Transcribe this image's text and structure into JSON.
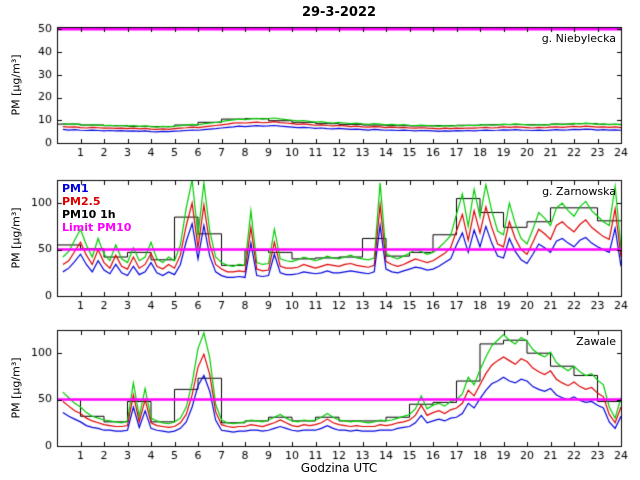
{
  "title": "29-3-2022",
  "xlabel": "Godzina UTC",
  "legend": {
    "items": [
      {
        "label": "PM1",
        "color": "#0000dd"
      },
      {
        "label": "PM2.5",
        "color": "#dd0000"
      },
      {
        "label": "PM10 1h",
        "color": "#000000"
      },
      {
        "label": "Limit PM10",
        "color": "#ff00ff"
      }
    ]
  },
  "chart_data": [
    {
      "type": "line",
      "station": "g. Niebylecka",
      "ylabel": "PM [µg/m³]",
      "xlim": [
        0,
        24
      ],
      "ylim": [
        0,
        51
      ],
      "xticks": [
        1,
        2,
        3,
        4,
        5,
        6,
        7,
        8,
        9,
        10,
        11,
        12,
        13,
        14,
        15,
        16,
        17,
        18,
        19,
        20,
        21,
        22,
        23,
        24
      ],
      "yticks": [
        0,
        10,
        20,
        30,
        40,
        50
      ],
      "x_start": 0.25,
      "x_step": 0.25,
      "series": [
        {
          "name": "PM10",
          "color": "#00cc00",
          "values": [
            8.5,
            8.2,
            8.4,
            8.0,
            7.8,
            8.1,
            7.9,
            7.6,
            7.8,
            7.5,
            7.7,
            7.4,
            7.6,
            7.3,
            7.5,
            7.2,
            7.0,
            7.3,
            7.1,
            7.4,
            7.6,
            7.9,
            8.2,
            8.0,
            8.4,
            8.7,
            9.0,
            9.4,
            9.8,
            10.2,
            10.5,
            10.3,
            10.6,
            10.8,
            10.5,
            10.7,
            11.0,
            10.6,
            10.3,
            10.0,
            9.7,
            9.9,
            9.5,
            9.2,
            9.4,
            9.0,
            8.8,
            9.1,
            8.8,
            8.5,
            8.7,
            8.4,
            8.2,
            8.5,
            8.3,
            8.0,
            8.2,
            7.9,
            8.1,
            7.8,
            7.6,
            7.9,
            7.7,
            7.5,
            7.3,
            7.6,
            7.4,
            7.7,
            7.5,
            7.8,
            7.6,
            7.9,
            8.1,
            7.8,
            8.0,
            8.3,
            8.1,
            8.4,
            8.2,
            8.0,
            7.8,
            8.1,
            7.9,
            8.2,
            8.4,
            8.1,
            8.3,
            8.6,
            8.4,
            8.7,
            8.5,
            8.2,
            8.4,
            8.1,
            8.3,
            8.0
          ]
        },
        {
          "name": "PM2.5",
          "color": "#dd0000",
          "values": [
            7.2,
            7.0,
            7.1,
            6.8,
            6.6,
            6.9,
            6.7,
            6.5,
            6.6,
            6.4,
            6.5,
            6.3,
            6.5,
            6.2,
            6.4,
            6.1,
            6.0,
            6.2,
            6.0,
            6.3,
            6.5,
            6.7,
            7.0,
            6.8,
            7.1,
            7.4,
            7.7,
            8.0,
            8.3,
            8.7,
            8.9,
            8.8,
            9.0,
            9.2,
            8.9,
            9.1,
            9.4,
            9.0,
            8.8,
            8.5,
            8.2,
            8.4,
            8.1,
            7.8,
            8.0,
            7.7,
            7.5,
            7.7,
            7.5,
            7.2,
            7.4,
            7.1,
            7.0,
            7.2,
            7.1,
            6.8,
            7.0,
            6.7,
            6.9,
            6.6,
            6.5,
            6.7,
            6.5,
            6.4,
            6.2,
            6.5,
            6.3,
            6.5,
            6.4,
            6.6,
            6.5,
            6.7,
            6.9,
            6.6,
            6.8,
            7.1,
            6.9,
            7.1,
            7.0,
            6.8,
            6.6,
            6.9,
            6.7,
            7.0,
            7.1,
            6.9,
            7.1,
            7.3,
            7.1,
            7.4,
            7.2,
            7.0,
            7.1,
            6.9,
            7.1,
            6.8
          ]
        },
        {
          "name": "PM1",
          "color": "#0000dd",
          "values": [
            6.0,
            5.7,
            5.9,
            5.6,
            5.5,
            5.7,
            5.5,
            5.3,
            5.5,
            5.3,
            5.4,
            5.2,
            5.3,
            5.1,
            5.3,
            5.0,
            4.9,
            5.1,
            5.0,
            5.2,
            5.3,
            5.5,
            5.7,
            5.6,
            5.9,
            6.1,
            6.3,
            6.6,
            6.9,
            7.1,
            7.4,
            7.2,
            7.4,
            7.6,
            7.4,
            7.5,
            7.7,
            7.4,
            7.2,
            7.0,
            6.8,
            6.9,
            6.7,
            6.4,
            6.6,
            6.3,
            6.2,
            6.4,
            6.2,
            6.0,
            6.1,
            5.9,
            5.7,
            6.0,
            5.8,
            5.6,
            5.7,
            5.5,
            5.7,
            5.5,
            5.3,
            5.5,
            5.4,
            5.3,
            5.1,
            5.3,
            5.2,
            5.4,
            5.3,
            5.5,
            5.3,
            5.5,
            5.7,
            5.5,
            5.6,
            5.8,
            5.7,
            5.9,
            5.7,
            5.6,
            5.5,
            5.7,
            5.5,
            5.7,
            5.9,
            5.7,
            5.8,
            6.0,
            5.9,
            6.1,
            6.0,
            5.7,
            5.9,
            5.7,
            5.8,
            5.6
          ]
        }
      ],
      "step_series": {
        "name": "PM10 1h",
        "color": "#000000",
        "values": [
          8.3,
          7.9,
          7.6,
          7.3,
          7.2,
          7.9,
          9.1,
          10.5,
          10.7,
          9.8,
          9.1,
          8.5,
          8.2,
          7.9,
          7.6,
          7.5,
          7.6,
          7.8,
          8.0,
          8.1,
          8.0,
          8.3,
          8.5,
          8.2
        ]
      },
      "limit": {
        "name": "Limit PM10",
        "color": "#ff00ff",
        "value": 50
      }
    },
    {
      "type": "line",
      "station": "g. Zarnowska",
      "ylabel": "PM [µg/m³]",
      "xlim": [
        0,
        24
      ],
      "ylim": [
        0,
        125
      ],
      "xticks": [
        1,
        2,
        3,
        4,
        5,
        6,
        7,
        8,
        9,
        10,
        11,
        12,
        13,
        14,
        15,
        16,
        17,
        18,
        19,
        20,
        21,
        22,
        23,
        24
      ],
      "yticks": [
        0,
        50,
        100
      ],
      "x_start": 0.25,
      "x_step": 0.25,
      "series": [
        {
          "name": "PM10",
          "color": "#00cc00",
          "values": [
            42,
            48,
            60,
            72,
            55,
            42,
            62,
            45,
            38,
            55,
            40,
            36,
            52,
            38,
            42,
            58,
            40,
            36,
            42,
            38,
            55,
            95,
            125,
            65,
            122,
            70,
            42,
            36,
            33,
            32,
            34,
            33,
            92,
            36,
            34,
            35,
            72,
            40,
            38,
            37,
            39,
            42,
            40,
            38,
            40,
            43,
            41,
            40,
            42,
            44,
            41,
            40,
            39,
            41,
            122,
            46,
            42,
            40,
            43,
            46,
            50,
            48,
            45,
            47,
            52,
            58,
            65,
            88,
            110,
            75,
            115,
            85,
            120,
            92,
            70,
            66,
            100,
            78,
            62,
            56,
            72,
            90,
            84,
            76,
            95,
            100,
            92,
            86,
            96,
            102,
            92,
            86,
            80,
            76,
            118,
            52
          ]
        },
        {
          "name": "PM2.5",
          "color": "#dd0000",
          "values": [
            34,
            38,
            48,
            58,
            44,
            34,
            50,
            36,
            30,
            44,
            32,
            29,
            42,
            30,
            34,
            46,
            32,
            29,
            34,
            30,
            44,
            76,
            100,
            52,
            98,
            56,
            34,
            29,
            26,
            26,
            27,
            26,
            74,
            29,
            27,
            28,
            58,
            32,
            30,
            30,
            31,
            34,
            32,
            30,
            32,
            34,
            33,
            32,
            34,
            35,
            33,
            32,
            31,
            33,
            98,
            37,
            34,
            32,
            34,
            37,
            40,
            38,
            36,
            38,
            42,
            46,
            52,
            70,
            88,
            60,
            92,
            68,
            96,
            74,
            56,
            53,
            80,
            62,
            50,
            45,
            58,
            72,
            67,
            61,
            76,
            80,
            74,
            69,
            77,
            82,
            74,
            69,
            64,
            61,
            94,
            42
          ]
        },
        {
          "name": "PM1",
          "color": "#0000dd",
          "values": [
            26,
            30,
            37,
            45,
            34,
            26,
            38,
            28,
            24,
            34,
            25,
            22,
            32,
            23,
            26,
            36,
            25,
            22,
            26,
            23,
            34,
            59,
            78,
            40,
            76,
            43,
            26,
            22,
            20,
            20,
            21,
            20,
            57,
            22,
            21,
            22,
            45,
            25,
            23,
            23,
            24,
            26,
            25,
            24,
            25,
            27,
            25,
            25,
            26,
            27,
            26,
            25,
            24,
            26,
            76,
            29,
            26,
            25,
            27,
            29,
            31,
            30,
            28,
            29,
            32,
            36,
            40,
            55,
            68,
            47,
            71,
            53,
            75,
            57,
            43,
            41,
            62,
            48,
            39,
            35,
            45,
            56,
            52,
            47,
            59,
            62,
            57,
            53,
            60,
            63,
            57,
            53,
            50,
            47,
            73,
            32
          ]
        }
      ],
      "step_series": {
        "name": "PM10 1h",
        "color": "#000000",
        "values": [
          55,
          51,
          42,
          47,
          39,
          85,
          67,
          33,
          49,
          47,
          40,
          41,
          42,
          62,
          43,
          47,
          66,
          105,
          90,
          74,
          80,
          95,
          95,
          81
        ]
      },
      "limit": {
        "name": "Limit PM10",
        "color": "#ff00ff",
        "value": 50
      }
    },
    {
      "type": "line",
      "station": "Zawale",
      "ylabel": "PM [µg/m³]",
      "xlim": [
        0,
        24
      ],
      "ylim": [
        0,
        125
      ],
      "xticks": [
        1,
        2,
        3,
        4,
        5,
        6,
        7,
        8,
        9,
        10,
        11,
        12,
        13,
        14,
        15,
        16,
        17,
        18,
        19,
        20,
        21,
        22,
        23,
        24
      ],
      "yticks": [
        0,
        50,
        100
      ],
      "x_start": 0.25,
      "x_step": 0.25,
      "series": [
        {
          "name": "PM10",
          "color": "#00cc00",
          "values": [
            58,
            52,
            46,
            42,
            36,
            32,
            30,
            28,
            27,
            26,
            25,
            27,
            68,
            32,
            62,
            30,
            27,
            25,
            24,
            26,
            30,
            42,
            68,
            105,
            122,
            95,
            45,
            28,
            25,
            24,
            25,
            26,
            28,
            27,
            26,
            28,
            31,
            34,
            30,
            27,
            26,
            28,
            27,
            28,
            31,
            35,
            31,
            28,
            27,
            26,
            27,
            26,
            25,
            26,
            28,
            27,
            28,
            30,
            32,
            34,
            40,
            54,
            40,
            44,
            46,
            43,
            48,
            50,
            56,
            74,
            66,
            82,
            96,
            108,
            114,
            120,
            114,
            110,
            117,
            113,
            104,
            99,
            96,
            101,
            90,
            85,
            81,
            86,
            80,
            76,
            78,
            71,
            66,
            42,
            30,
            52
          ]
        },
        {
          "name": "PM2.5",
          "color": "#dd0000",
          "values": [
            48,
            43,
            38,
            35,
            30,
            27,
            25,
            23,
            22,
            21,
            21,
            22,
            55,
            26,
            50,
            25,
            22,
            21,
            20,
            21,
            25,
            34,
            55,
            85,
            99,
            77,
            37,
            23,
            21,
            20,
            21,
            21,
            23,
            22,
            21,
            23,
            25,
            28,
            25,
            22,
            21,
            23,
            22,
            23,
            25,
            29,
            25,
            23,
            22,
            21,
            22,
            21,
            21,
            21,
            23,
            22,
            23,
            25,
            26,
            28,
            33,
            44,
            33,
            36,
            38,
            35,
            39,
            41,
            46,
            60,
            54,
            66,
            78,
            87,
            92,
            96,
            92,
            88,
            94,
            91,
            84,
            80,
            77,
            81,
            72,
            68,
            65,
            69,
            64,
            61,
            63,
            57,
            53,
            34,
            25,
            42
          ]
        },
        {
          "name": "PM1",
          "color": "#0000dd",
          "values": [
            36,
            32,
            29,
            26,
            22,
            20,
            19,
            17,
            17,
            16,
            16,
            17,
            42,
            20,
            38,
            19,
            17,
            16,
            15,
            16,
            19,
            26,
            42,
            65,
            76,
            59,
            28,
            17,
            16,
            15,
            16,
            16,
            17,
            17,
            16,
            17,
            19,
            21,
            19,
            17,
            16,
            17,
            17,
            17,
            19,
            22,
            19,
            17,
            17,
            16,
            17,
            16,
            16,
            16,
            17,
            17,
            17,
            19,
            20,
            21,
            25,
            33,
            25,
            27,
            29,
            27,
            30,
            31,
            35,
            46,
            41,
            51,
            60,
            67,
            70,
            74,
            70,
            68,
            72,
            70,
            64,
            61,
            59,
            62,
            55,
            52,
            50,
            53,
            49,
            47,
            48,
            44,
            41,
            26,
            19,
            32
          ]
        }
      ],
      "step_series": {
        "name": "PM10 1h",
        "color": "#000000",
        "values": [
          50,
          32,
          26,
          48,
          26,
          61,
          73,
          25,
          27,
          31,
          27,
          31,
          27,
          27,
          31,
          45,
          47,
          70,
          110,
          114,
          100,
          86,
          76,
          48
        ]
      },
      "limit": {
        "name": "Limit PM10",
        "color": "#ff00ff",
        "value": 50
      }
    }
  ]
}
